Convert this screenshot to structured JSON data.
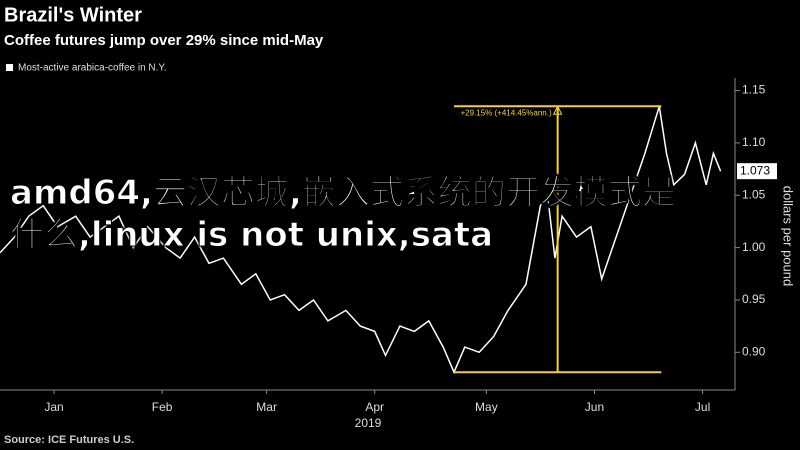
{
  "chart_data": {
    "type": "line",
    "title": "Brazil's Winter",
    "subtitle": "Coffee futures jump over 29% since mid-May",
    "source": "Source: ICE Futures U.S.",
    "y_label": "dollars per pound",
    "x_label": "2019",
    "annotation": "+29.15% (+414.45%ann.)",
    "overlay_text": "amd64,云汉芯城,嵌入式系统的开发模式是什么,linux is not unix,sata",
    "xlim": [
      1,
      205
    ],
    "xticks": [
      {
        "value": 16,
        "label": "Jan"
      },
      {
        "value": 46,
        "label": "Feb"
      },
      {
        "value": 75,
        "label": "Mar"
      },
      {
        "value": 105,
        "label": "Apr"
      },
      {
        "value": 136,
        "label": "May"
      },
      {
        "value": 166,
        "label": "Jun"
      },
      {
        "value": 196,
        "label": "Jul"
      }
    ],
    "ylim": [
      0.864,
      1.162
    ],
    "yticks": [
      {
        "value": 0.9,
        "label": "0.90"
      },
      {
        "value": 0.95,
        "label": "0.95"
      },
      {
        "value": 1.0,
        "label": "1.00"
      },
      {
        "value": 1.05,
        "label": "1.05"
      },
      {
        "value": 1.1,
        "label": "1.10"
      },
      {
        "value": 1.15,
        "label": "1.15"
      }
    ],
    "annotation_color": "#f5d327",
    "x": [
      1,
      5,
      9,
      13,
      17,
      22,
      26,
      30,
      34,
      38,
      42,
      47,
      51,
      55,
      59,
      63,
      68,
      72,
      76,
      80,
      84,
      88,
      92,
      97,
      101,
      105,
      108,
      112,
      116,
      120,
      124,
      127,
      130,
      134,
      138,
      142,
      147,
      151,
      153,
      155,
      157,
      161,
      165,
      168,
      172,
      176,
      180,
      184,
      186,
      188,
      191,
      194,
      197,
      199,
      201
    ],
    "series": [
      {
        "name": "Most-active arabica-coffee in N.Y.",
        "color": "#ffffff",
        "values": [
          0.995,
          1.01,
          1.03,
          1.04,
          1.02,
          1.03,
          1.01,
          1.02,
          1.03,
          1.0,
          1.02,
          1.0,
          0.99,
          1.01,
          0.985,
          0.99,
          0.965,
          0.975,
          0.95,
          0.955,
          0.94,
          0.95,
          0.93,
          0.94,
          0.925,
          0.92,
          0.897,
          0.925,
          0.92,
          0.93,
          0.905,
          0.881,
          0.905,
          0.9,
          0.915,
          0.94,
          0.965,
          1.04,
          1.05,
          0.99,
          1.03,
          1.01,
          1.02,
          0.97,
          1.01,
          1.05,
          1.09,
          1.135,
          1.09,
          1.06,
          1.07,
          1.1,
          1.06,
          1.09,
          1.073
        ]
      }
    ]
  }
}
